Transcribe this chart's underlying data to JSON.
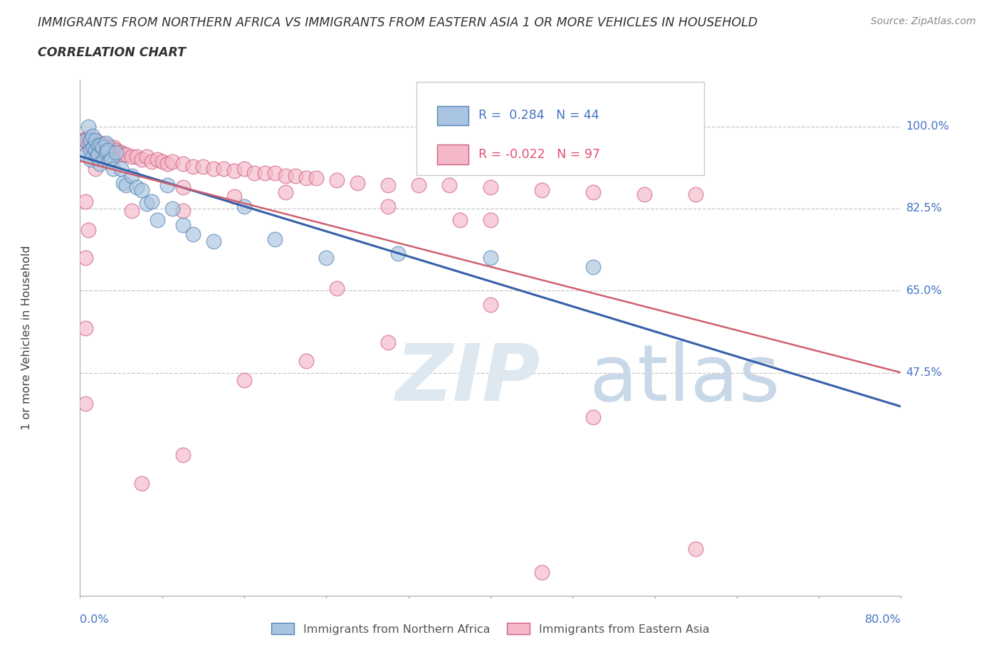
{
  "title_line1": "IMMIGRANTS FROM NORTHERN AFRICA VS IMMIGRANTS FROM EASTERN ASIA 1 OR MORE VEHICLES IN HOUSEHOLD",
  "title_line2": "CORRELATION CHART",
  "source_text": "Source: ZipAtlas.com",
  "ylabel": "1 or more Vehicles in Household",
  "xlim": [
    0.0,
    0.8
  ],
  "ylim": [
    0.0,
    1.1
  ],
  "xtick_labels": [
    "0.0%",
    "80.0%"
  ],
  "ytick_labels": [
    "100.0%",
    "82.5%",
    "65.0%",
    "47.5%"
  ],
  "ytick_positions": [
    1.0,
    0.825,
    0.65,
    0.475
  ],
  "grid_color": "#c8c8c8",
  "background_color": "#ffffff",
  "na_fill": "#a8c4e0",
  "na_edge": "#5585b5",
  "ea_fill": "#f4b8c8",
  "ea_edge": "#d06080",
  "na_line_color": "#3560a8",
  "ea_line_color": "#d06070",
  "legend_R1": "0.284",
  "legend_N1": "44",
  "legend_R2": "-0.022",
  "legend_N2": "97",
  "na_x": [
    0.005,
    0.005,
    0.008,
    0.01,
    0.01,
    0.01,
    0.012,
    0.013,
    0.015,
    0.015,
    0.016,
    0.018,
    0.018,
    0.019,
    0.02,
    0.022,
    0.023,
    0.025,
    0.025,
    0.027,
    0.028,
    0.03,
    0.032,
    0.035,
    0.04,
    0.042,
    0.045,
    0.05,
    0.055,
    0.06,
    0.065,
    0.07,
    0.075,
    0.085,
    0.09,
    0.1,
    0.11,
    0.13,
    0.16,
    0.19,
    0.24,
    0.31,
    0.4,
    0.5
  ],
  "na_y": [
    0.97,
    0.94,
    1.0,
    0.97,
    0.95,
    0.93,
    0.98,
    0.955,
    0.97,
    0.95,
    0.935,
    0.96,
    0.94,
    0.92,
    0.96,
    0.955,
    0.93,
    0.965,
    0.945,
    0.95,
    0.925,
    0.93,
    0.91,
    0.945,
    0.91,
    0.88,
    0.875,
    0.895,
    0.87,
    0.865,
    0.835,
    0.84,
    0.8,
    0.875,
    0.825,
    0.79,
    0.77,
    0.755,
    0.83,
    0.76,
    0.72,
    0.73,
    0.72,
    0.7
  ],
  "ea_x": [
    0.003,
    0.005,
    0.005,
    0.006,
    0.007,
    0.008,
    0.009,
    0.009,
    0.01,
    0.01,
    0.01,
    0.012,
    0.012,
    0.013,
    0.013,
    0.014,
    0.015,
    0.015,
    0.016,
    0.017,
    0.018,
    0.018,
    0.019,
    0.02,
    0.02,
    0.021,
    0.022,
    0.023,
    0.025,
    0.025,
    0.027,
    0.028,
    0.03,
    0.032,
    0.033,
    0.035,
    0.038,
    0.04,
    0.042,
    0.045,
    0.05,
    0.055,
    0.06,
    0.065,
    0.07,
    0.075,
    0.08,
    0.085,
    0.09,
    0.1,
    0.11,
    0.12,
    0.13,
    0.14,
    0.15,
    0.16,
    0.17,
    0.18,
    0.19,
    0.2,
    0.21,
    0.22,
    0.23,
    0.25,
    0.27,
    0.3,
    0.33,
    0.36,
    0.4,
    0.45,
    0.5,
    0.55,
    0.6,
    0.005,
    0.05,
    0.1,
    0.15,
    0.2,
    0.1,
    0.3,
    0.4,
    0.008,
    0.015,
    0.37,
    0.005,
    0.25,
    0.4,
    0.005,
    0.3,
    0.22,
    0.16,
    0.005,
    0.5,
    0.1,
    0.06,
    0.6,
    0.45
  ],
  "ea_y": [
    0.97,
    0.97,
    0.96,
    0.975,
    0.97,
    0.965,
    0.965,
    0.96,
    0.975,
    0.965,
    0.96,
    0.97,
    0.965,
    0.97,
    0.96,
    0.965,
    0.97,
    0.96,
    0.965,
    0.965,
    0.96,
    0.955,
    0.96,
    0.965,
    0.955,
    0.958,
    0.955,
    0.96,
    0.96,
    0.95,
    0.955,
    0.95,
    0.955,
    0.945,
    0.955,
    0.95,
    0.945,
    0.945,
    0.94,
    0.94,
    0.935,
    0.935,
    0.93,
    0.935,
    0.925,
    0.93,
    0.925,
    0.92,
    0.925,
    0.92,
    0.915,
    0.915,
    0.91,
    0.91,
    0.905,
    0.91,
    0.9,
    0.9,
    0.9,
    0.895,
    0.895,
    0.89,
    0.89,
    0.885,
    0.88,
    0.875,
    0.875,
    0.875,
    0.87,
    0.865,
    0.86,
    0.855,
    0.855,
    0.84,
    0.82,
    0.87,
    0.85,
    0.86,
    0.82,
    0.83,
    0.8,
    0.78,
    0.91,
    0.8,
    0.72,
    0.655,
    0.62,
    0.57,
    0.54,
    0.5,
    0.46,
    0.41,
    0.38,
    0.3,
    0.24,
    0.1,
    0.05
  ]
}
